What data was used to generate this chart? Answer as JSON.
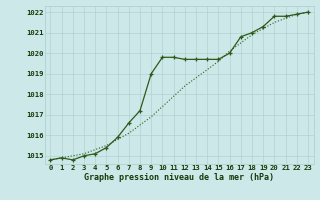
{
  "title": "Graphe pression niveau de la mer (hPa)",
  "x_labels": [
    "0",
    "1",
    "2",
    "3",
    "4",
    "5",
    "6",
    "7",
    "8",
    "9",
    "10",
    "11",
    "12",
    "13",
    "14",
    "15",
    "16",
    "17",
    "18",
    "19",
    "20",
    "21",
    "22",
    "23"
  ],
  "x_values": [
    0,
    1,
    2,
    3,
    4,
    5,
    6,
    7,
    8,
    9,
    10,
    11,
    12,
    13,
    14,
    15,
    16,
    17,
    18,
    19,
    20,
    21,
    22,
    23
  ],
  "line1_y": [
    1014.8,
    1014.9,
    1014.8,
    1015.0,
    1015.1,
    1015.4,
    1015.9,
    1016.6,
    1017.2,
    1019.0,
    1019.8,
    1019.8,
    1019.7,
    1019.7,
    1019.7,
    1019.7,
    1020.0,
    1020.8,
    1021.0,
    1021.3,
    1021.8,
    1021.8,
    1021.9,
    1022.0
  ],
  "line2_y": [
    1014.8,
    1014.9,
    1015.0,
    1015.1,
    1015.3,
    1015.5,
    1015.8,
    1016.1,
    1016.5,
    1016.9,
    1017.4,
    1017.9,
    1018.4,
    1018.8,
    1019.2,
    1019.6,
    1020.1,
    1020.5,
    1020.9,
    1021.2,
    1021.5,
    1021.7,
    1021.9,
    1022.0
  ],
  "line_color": "#2d5a1b",
  "bg_color": "#cce8e8",
  "grid_color": "#aacece",
  "ylim_min": 1014.6,
  "ylim_max": 1022.3,
  "yticks": [
    1015,
    1016,
    1017,
    1018,
    1019,
    1020,
    1021,
    1022
  ],
  "xlabel_fontsize": 6.0,
  "tick_fontsize": 5.2,
  "line1_lw": 0.9,
  "line2_lw": 0.8,
  "marker_size": 3.5,
  "marker_lw": 0.9
}
